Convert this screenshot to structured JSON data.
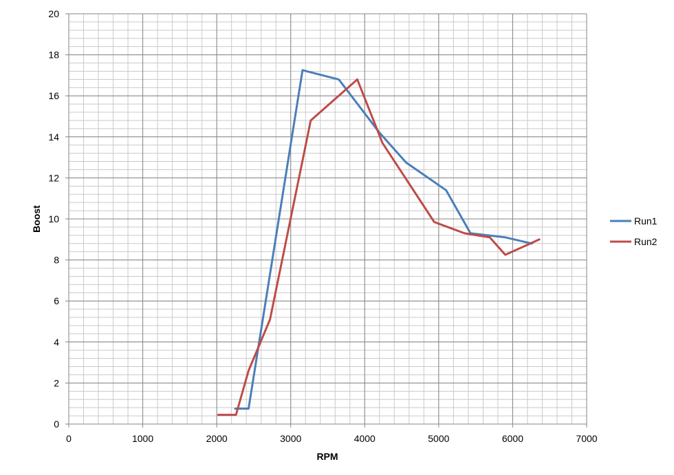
{
  "chart_data": {
    "type": "scatter",
    "xlabel": "RPM",
    "ylabel": "Boost",
    "xlim": [
      0,
      7000
    ],
    "ylim": [
      0,
      20
    ],
    "x_major_step": 1000,
    "x_minor_step": 200,
    "y_major_step": 2,
    "y_minor_step": 0.4,
    "grid": true,
    "legend_position": "right",
    "series": [
      {
        "name": "Run1",
        "color": "#4A7EBB",
        "points": [
          [
            2250,
            0.75
          ],
          [
            2430,
            0.75
          ],
          [
            3160,
            17.25
          ],
          [
            3650,
            16.8
          ],
          [
            4200,
            14.2
          ],
          [
            4560,
            12.75
          ],
          [
            5100,
            11.4
          ],
          [
            5430,
            9.3
          ],
          [
            5900,
            9.1
          ],
          [
            6260,
            8.8
          ]
        ]
      },
      {
        "name": "Run2",
        "color": "#BE4B48",
        "points": [
          [
            2020,
            0.45
          ],
          [
            2260,
            0.45
          ],
          [
            2430,
            2.6
          ],
          [
            2720,
            5.1
          ],
          [
            3270,
            14.8
          ],
          [
            3900,
            16.8
          ],
          [
            4240,
            13.7
          ],
          [
            4940,
            9.85
          ],
          [
            5350,
            9.3
          ],
          [
            5690,
            9.1
          ],
          [
            5900,
            8.25
          ],
          [
            6360,
            9.0
          ]
        ]
      }
    ]
  }
}
